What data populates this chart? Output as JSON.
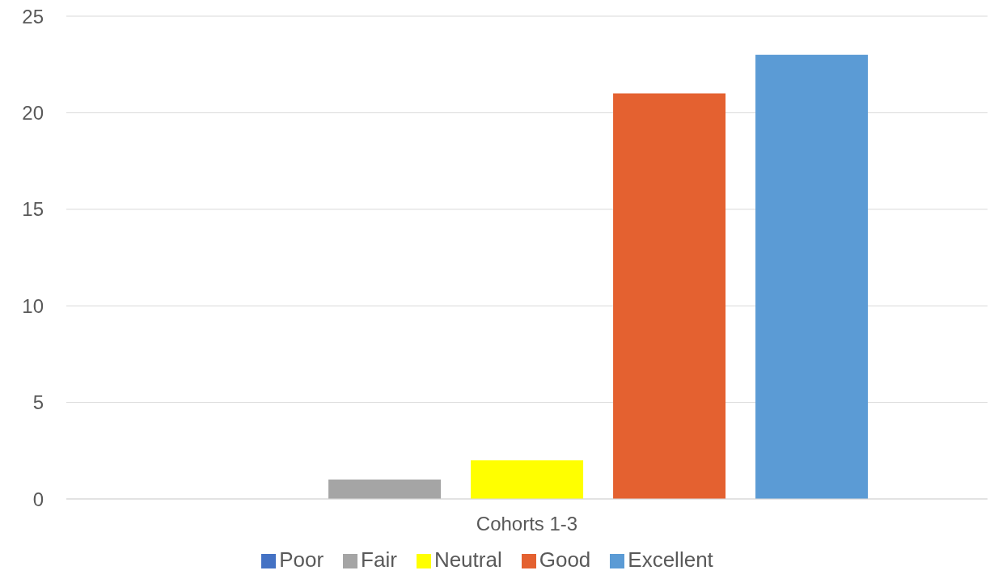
{
  "chart_data": {
    "type": "bar",
    "categories": [
      "Cohorts 1-3"
    ],
    "series": [
      {
        "name": "Poor",
        "color": "#4472c4",
        "values": [
          0
        ]
      },
      {
        "name": "Fair",
        "color": "#a5a5a5",
        "values": [
          1
        ]
      },
      {
        "name": "Neutral",
        "color": "#ffff00",
        "values": [
          2
        ]
      },
      {
        "name": "Good",
        "color": "#e46130",
        "values": [
          21
        ]
      },
      {
        "name": "Excellent",
        "color": "#5b9bd5",
        "values": [
          23
        ]
      }
    ],
    "ylim": [
      0,
      25
    ],
    "yticks": [
      0,
      5,
      10,
      15,
      20,
      25
    ],
    "grid": "y",
    "legend": "bottom"
  }
}
